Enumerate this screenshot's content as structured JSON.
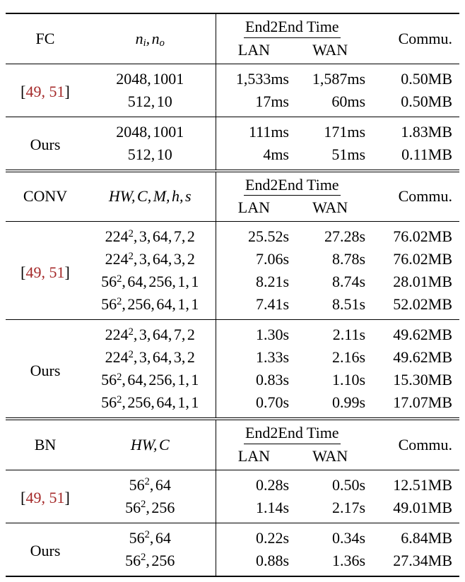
{
  "colors": {
    "background": "#ffffff",
    "text": "#000000",
    "rule": "#000000",
    "citation": "#a52a2a"
  },
  "sections": [
    {
      "name": "FC",
      "header": {
        "col1": "FC",
        "col2": "n_i, n_o",
        "e2e": "End2End Time",
        "lan": "LAN",
        "wan": "WAN",
        "commu": "Commu."
      },
      "groups": [
        {
          "label": {
            "kind": "citation",
            "open": "[",
            "refs": "49, 51",
            "close": "]"
          },
          "rows": [
            {
              "params": "2048, 1001",
              "lan": "1,533ms",
              "wan": "1,587ms",
              "commu": "0.50MB"
            },
            {
              "params": "512, 10",
              "lan": "17ms",
              "wan": "60ms",
              "commu": "0.50MB"
            }
          ]
        },
        {
          "label": {
            "kind": "plain",
            "text": "Ours"
          },
          "rows": [
            {
              "params": "2048, 1001",
              "lan": "111ms",
              "wan": "171ms",
              "commu": "1.83MB"
            },
            {
              "params": "512, 10",
              "lan": "4ms",
              "wan": "51ms",
              "commu": "0.11MB"
            }
          ]
        }
      ]
    },
    {
      "name": "CONV",
      "header": {
        "col1": "CONV",
        "col2": "HW, C, M, h, s",
        "e2e": "End2End Time",
        "lan": "LAN",
        "wan": "WAN",
        "commu": "Commu."
      },
      "groups": [
        {
          "label": {
            "kind": "citation",
            "open": "[",
            "refs": "49, 51",
            "close": "]"
          },
          "rows": [
            {
              "params": "224^2, 3, 64, 7, 2",
              "lan": "25.52s",
              "wan": "27.28s",
              "commu": "76.02MB"
            },
            {
              "params": "224^2, 3, 64, 3, 2",
              "lan": "7.06s",
              "wan": "8.78s",
              "commu": "76.02MB"
            },
            {
              "params": "56^2, 64, 256, 1, 1",
              "lan": "8.21s",
              "wan": "8.74s",
              "commu": "28.01MB"
            },
            {
              "params": "56^2, 256, 64, 1, 1",
              "lan": "7.41s",
              "wan": "8.51s",
              "commu": "52.02MB"
            }
          ]
        },
        {
          "label": {
            "kind": "plain",
            "text": "Ours"
          },
          "rows": [
            {
              "params": "224^2, 3, 64, 7, 2",
              "lan": "1.30s",
              "wan": "2.11s",
              "commu": "49.62MB"
            },
            {
              "params": "224^2, 3, 64, 3, 2",
              "lan": "1.33s",
              "wan": "2.16s",
              "commu": "49.62MB"
            },
            {
              "params": "56^2, 64, 256, 1, 1",
              "lan": "0.83s",
              "wan": "1.10s",
              "commu": "15.30MB"
            },
            {
              "params": "56^2, 256, 64, 1, 1",
              "lan": "0.70s",
              "wan": "0.99s",
              "commu": "17.07MB"
            }
          ]
        }
      ]
    },
    {
      "name": "BN",
      "header": {
        "col1": "BN",
        "col2": "HW, C",
        "e2e": "End2End Time",
        "lan": "LAN",
        "wan": "WAN",
        "commu": "Commu."
      },
      "groups": [
        {
          "label": {
            "kind": "citation",
            "open": "[",
            "refs": "49, 51",
            "close": "]"
          },
          "rows": [
            {
              "params": "56^2, 64",
              "lan": "0.28s",
              "wan": "0.50s",
              "commu": "12.51MB"
            },
            {
              "params": "56^2, 256",
              "lan": "1.14s",
              "wan": "2.17s",
              "commu": "49.01MB"
            }
          ]
        },
        {
          "label": {
            "kind": "plain",
            "text": "Ours"
          },
          "rows": [
            {
              "params": "56^2, 64",
              "lan": "0.22s",
              "wan": "0.34s",
              "commu": "6.84MB"
            },
            {
              "params": "56^2, 256",
              "lan": "0.88s",
              "wan": "1.36s",
              "commu": "27.34MB"
            }
          ]
        }
      ]
    }
  ]
}
